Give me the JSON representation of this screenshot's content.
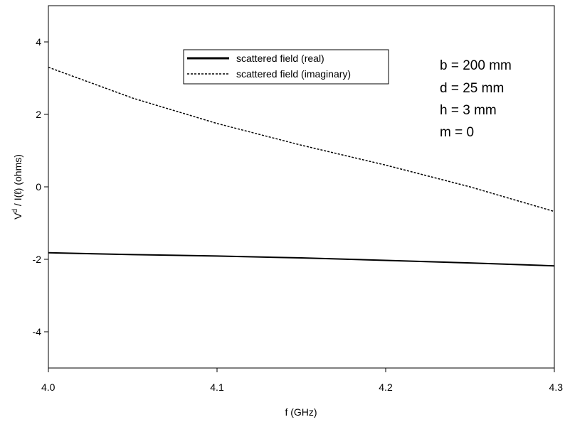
{
  "chart_data": {
    "type": "line",
    "xlabel": "f (GHz)",
    "ylabel_main": "V",
    "ylabel_sup": "d",
    "ylabel_rest": " / I(ℓ) (ohms)",
    "xlim": [
      4.0,
      4.3
    ],
    "ylim": [
      -5,
      5
    ],
    "x_ticks": [
      "4.0",
      "4.1",
      "4.2",
      "4.3"
    ],
    "x_tick_values": [
      4.0,
      4.1,
      4.2,
      4.3
    ],
    "y_ticks": [
      "4",
      "2",
      "0",
      "-2",
      "-4"
    ],
    "y_tick_values": [
      4,
      2,
      0,
      -2,
      -4
    ],
    "grid": false,
    "legend_position": "top-center",
    "series": [
      {
        "name": "scattered field (real)",
        "style": "solid",
        "x": [
          4.0,
          4.05,
          4.1,
          4.15,
          4.2,
          4.25,
          4.3
        ],
        "y": [
          -1.82,
          -1.87,
          -1.91,
          -1.96,
          -2.03,
          -2.1,
          -2.18
        ]
      },
      {
        "name": "scattered field (imaginary)",
        "style": "dashed",
        "x": [
          4.0,
          4.05,
          4.1,
          4.15,
          4.2,
          4.25,
          4.3
        ],
        "y": [
          3.3,
          2.45,
          1.75,
          1.15,
          0.6,
          0.0,
          -0.68
        ]
      }
    ],
    "annotations": [
      "b = 200 mm",
      "d = 25 mm",
      "h = 3 mm",
      "m = 0"
    ]
  },
  "colors": {
    "line": "#000000",
    "background": "#ffffff"
  }
}
